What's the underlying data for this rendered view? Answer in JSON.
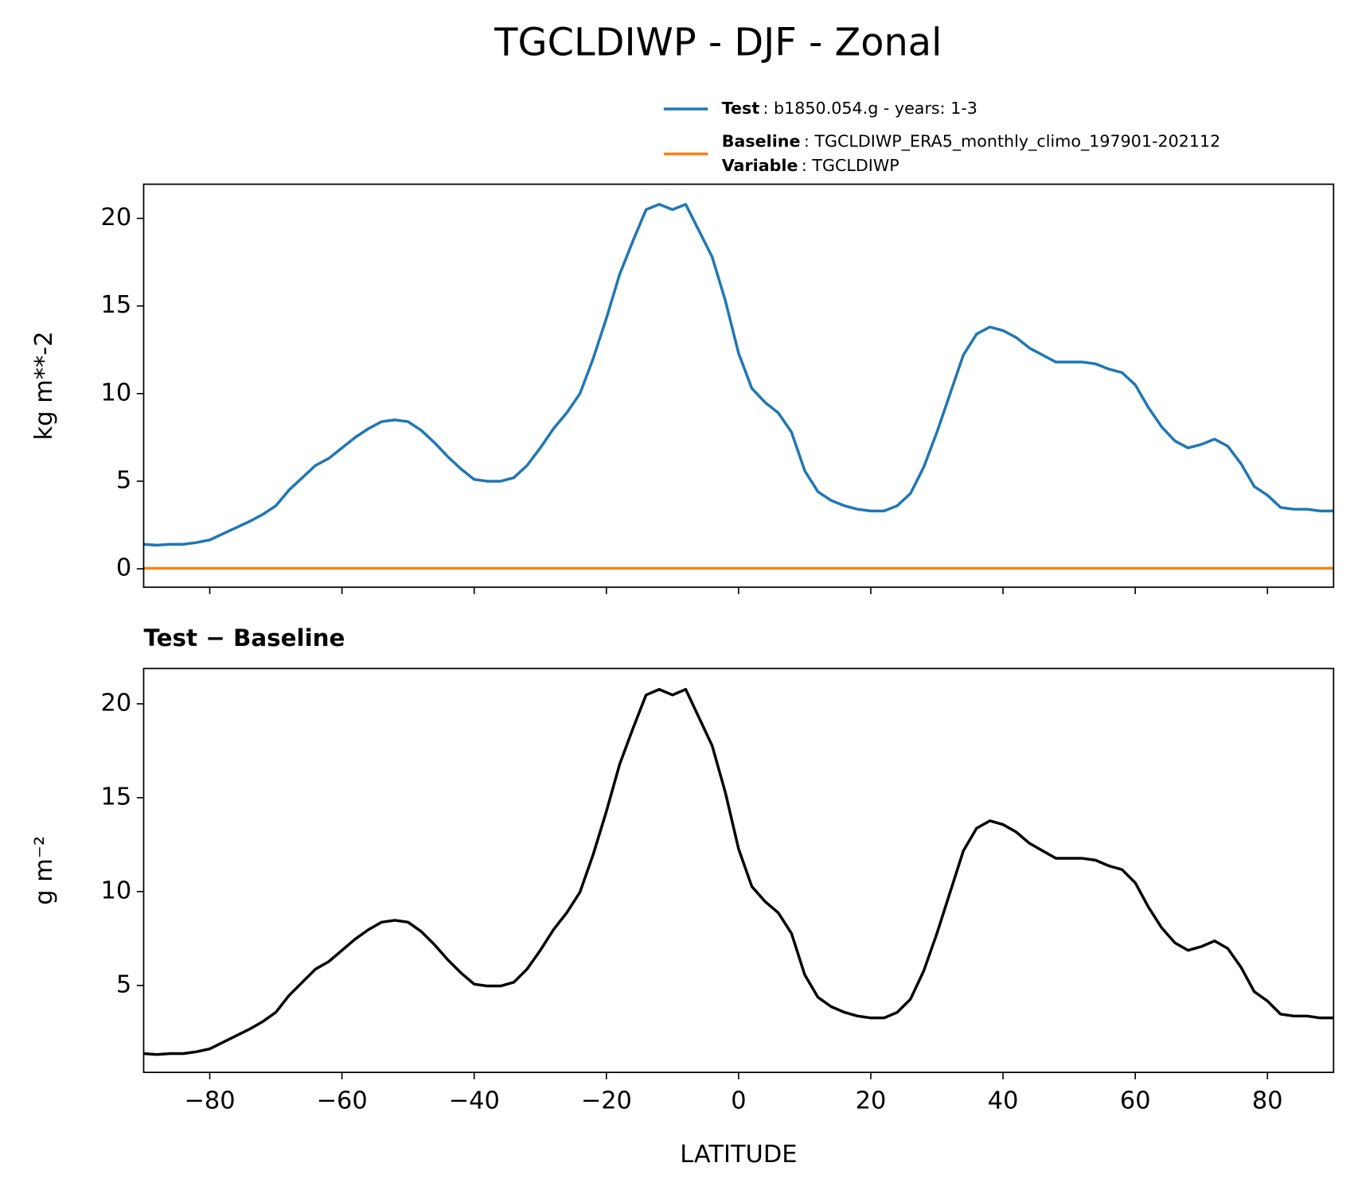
{
  "chart_data": [
    {
      "type": "line",
      "title": "TGCLDIWP - DJF - Zonal",
      "ylabel": "kg m**-2",
      "x": [
        -90,
        -88,
        -86,
        -84,
        -82,
        -80,
        -78,
        -76,
        -74,
        -72,
        -70,
        -68,
        -66,
        -64,
        -62,
        -60,
        -58,
        -56,
        -54,
        -52,
        -50,
        -48,
        -46,
        -44,
        -42,
        -40,
        -38,
        -36,
        -34,
        -32,
        -30,
        -28,
        -26,
        -24,
        -22,
        -20,
        -18,
        -16,
        -14,
        -12,
        -10,
        -8,
        -6,
        -4,
        -2,
        0,
        2,
        4,
        6,
        8,
        10,
        12,
        14,
        16,
        18,
        20,
        22,
        24,
        26,
        28,
        30,
        32,
        34,
        36,
        38,
        40,
        42,
        44,
        46,
        48,
        50,
        52,
        54,
        56,
        58,
        60,
        62,
        64,
        66,
        68,
        70,
        72,
        74,
        76,
        78,
        80,
        82,
        84,
        86,
        88,
        90
      ],
      "series": [
        {
          "name": "Test",
          "detail": ": b1850.054.g - years: 1-3",
          "color": "#1f77b4",
          "values": [
            1.4,
            1.35,
            1.4,
            1.4,
            1.5,
            1.65,
            2.0,
            2.35,
            2.7,
            3.1,
            3.6,
            4.5,
            5.2,
            5.9,
            6.3,
            6.9,
            7.5,
            8.0,
            8.4,
            8.5,
            8.4,
            7.9,
            7.2,
            6.4,
            5.7,
            5.1,
            5.0,
            5.0,
            5.2,
            5.9,
            6.9,
            8.0,
            8.9,
            10.0,
            12.0,
            14.3,
            16.8,
            18.7,
            20.5,
            20.8,
            20.5,
            20.8,
            19.3,
            17.8,
            15.3,
            12.3,
            10.3,
            9.5,
            8.9,
            7.8,
            5.6,
            4.4,
            3.9,
            3.6,
            3.4,
            3.3,
            3.3,
            3.6,
            4.3,
            5.8,
            7.8,
            10.0,
            12.2,
            13.4,
            13.8,
            13.6,
            13.2,
            12.6,
            12.2,
            11.8,
            11.8,
            11.8,
            11.7,
            11.4,
            11.2,
            10.5,
            9.2,
            8.1,
            7.3,
            6.9,
            7.1,
            7.4,
            7.0,
            6.0,
            4.7,
            4.2,
            3.5,
            3.4,
            3.4,
            3.3,
            3.3
          ]
        },
        {
          "name": "Baseline",
          "detail": ": TGCLDIWP_ERA5_monthly_climo_197901-202112",
          "extra_name": "Variable",
          "extra_detail": ": TGCLDIWP",
          "color": "#ff7f0e",
          "values": [
            0.03,
            0.03,
            0.03,
            0.03,
            0.03,
            0.03,
            0.03,
            0.03,
            0.03,
            0.03,
            0.03,
            0.03,
            0.03,
            0.03,
            0.03,
            0.03,
            0.03,
            0.03,
            0.03,
            0.03,
            0.03,
            0.03,
            0.03,
            0.03,
            0.03,
            0.03,
            0.03,
            0.03,
            0.03,
            0.03,
            0.03,
            0.03,
            0.03,
            0.03,
            0.03,
            0.03,
            0.03,
            0.03,
            0.03,
            0.03,
            0.03,
            0.03,
            0.03,
            0.03,
            0.03,
            0.03,
            0.03,
            0.03,
            0.03,
            0.03,
            0.03,
            0.03,
            0.03,
            0.03,
            0.03,
            0.03,
            0.03,
            0.03,
            0.03,
            0.03,
            0.03,
            0.03,
            0.03,
            0.03,
            0.03,
            0.03,
            0.03,
            0.03,
            0.03,
            0.03,
            0.03,
            0.03,
            0.03,
            0.03,
            0.03,
            0.03,
            0.03,
            0.03,
            0.03,
            0.03,
            0.03,
            0.03,
            0.03,
            0.03,
            0.03,
            0.03,
            0.03,
            0.03,
            0.03,
            0.03,
            0.03
          ]
        }
      ],
      "xlim": [
        -90,
        90
      ],
      "xticks": [
        {
          "value": -80,
          "label": "−80"
        },
        {
          "value": -60,
          "label": "−60"
        },
        {
          "value": -40,
          "label": "−40"
        },
        {
          "value": -20,
          "label": "−20"
        },
        0,
        20,
        40,
        60,
        80
      ],
      "show_xtick_labels": false,
      "ylim": [
        -1.05,
        21.95
      ],
      "yticks": [
        0,
        5,
        10,
        15,
        20
      ],
      "legend": "upper right"
    },
    {
      "type": "line",
      "title": "Test − Baseline",
      "ylabel": "g m⁻²",
      "xlabel": "LATITUDE",
      "x": [
        -90,
        -88,
        -86,
        -84,
        -82,
        -80,
        -78,
        -76,
        -74,
        -72,
        -70,
        -68,
        -66,
        -64,
        -62,
        -60,
        -58,
        -56,
        -54,
        -52,
        -50,
        -48,
        -46,
        -44,
        -42,
        -40,
        -38,
        -36,
        -34,
        -32,
        -30,
        -28,
        -26,
        -24,
        -22,
        -20,
        -18,
        -16,
        -14,
        -12,
        -10,
        -8,
        -6,
        -4,
        -2,
        0,
        2,
        4,
        6,
        8,
        10,
        12,
        14,
        16,
        18,
        20,
        22,
        24,
        26,
        28,
        30,
        32,
        34,
        36,
        38,
        40,
        42,
        44,
        46,
        48,
        50,
        52,
        54,
        56,
        58,
        60,
        62,
        64,
        66,
        68,
        70,
        72,
        74,
        76,
        78,
        80,
        82,
        84,
        86,
        88,
        90
      ],
      "series": [
        {
          "color": "#000000",
          "values": [
            1.37,
            1.32,
            1.37,
            1.37,
            1.47,
            1.62,
            1.97,
            2.32,
            2.67,
            3.07,
            3.57,
            4.47,
            5.17,
            5.87,
            6.27,
            6.87,
            7.47,
            7.97,
            8.37,
            8.47,
            8.37,
            7.87,
            7.17,
            6.37,
            5.67,
            5.07,
            4.97,
            4.97,
            5.17,
            5.87,
            6.87,
            7.97,
            8.87,
            9.97,
            11.97,
            14.27,
            16.77,
            18.67,
            20.47,
            20.77,
            20.47,
            20.77,
            19.27,
            17.77,
            15.27,
            12.27,
            10.27,
            9.47,
            8.87,
            7.77,
            5.57,
            4.37,
            3.87,
            3.57,
            3.37,
            3.27,
            3.27,
            3.57,
            4.27,
            5.77,
            7.77,
            9.97,
            12.17,
            13.37,
            13.77,
            13.57,
            13.17,
            12.57,
            12.17,
            11.77,
            11.77,
            11.77,
            11.67,
            11.37,
            11.17,
            10.47,
            9.17,
            8.07,
            7.27,
            6.87,
            7.07,
            7.37,
            6.97,
            5.97,
            4.67,
            4.17,
            3.47,
            3.37,
            3.37,
            3.27,
            3.27
          ]
        }
      ],
      "xlim": [
        -90,
        90
      ],
      "xticks": [
        {
          "value": -80,
          "label": "−80"
        },
        {
          "value": -60,
          "label": "−60"
        },
        {
          "value": -40,
          "label": "−40"
        },
        {
          "value": -20,
          "label": "−20"
        },
        0,
        20,
        40,
        60,
        80
      ],
      "show_xtick_labels": true,
      "ylim": [
        0.37,
        21.88
      ],
      "yticks": [
        5,
        10,
        15,
        20
      ]
    }
  ]
}
